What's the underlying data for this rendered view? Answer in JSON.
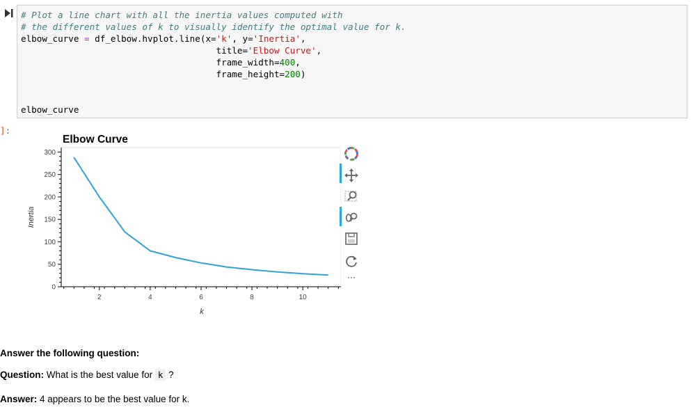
{
  "code_cell": {
    "lines": {
      "l1": "# Plot a line chart with all the inertia values computed with",
      "l2": "# the different values of k to visually identify the optimal value for k.",
      "l3a": "elbow_curve ",
      "l3b": "=",
      "l3c": " df_elbow.hvplot.line(x=",
      "l3d": "'k'",
      "l3e": ", y=",
      "l3f": "'Inertia'",
      "l3g": ",",
      "l4a": "                                     title=",
      "l4b": "'Elbow Curve'",
      "l4c": ",",
      "l5a": "                                     frame_width=",
      "l5b": "400",
      "l5c": ",",
      "l6a": "                                     frame_height=",
      "l6b": "200",
      "l6c": ")",
      "l7": "",
      "l8": "",
      "l9": "elbow_curve"
    }
  },
  "output_prompt": "]:",
  "chart_data": {
    "type": "line",
    "title": "Elbow Curve",
    "xlabel": "k",
    "ylabel": "Inertia",
    "xlim": [
      0.5,
      11.5
    ],
    "ylim": [
      0,
      310
    ],
    "x_ticks": [
      2,
      4,
      6,
      8,
      10
    ],
    "y_ticks": [
      0,
      50,
      100,
      150,
      200,
      250,
      300
    ],
    "x": [
      1,
      2,
      3,
      4,
      5,
      6,
      7,
      8,
      9,
      10,
      11
    ],
    "values": [
      288,
      200,
      122,
      80,
      65,
      53,
      44,
      38,
      33,
      29,
      26
    ],
    "line_color": "#30a2da",
    "grid": false
  },
  "toolbar": {
    "tools": [
      "bokeh-logo-icon",
      "pan-icon",
      "box-zoom-icon",
      "wheel-zoom-icon",
      "save-icon",
      "reset-icon",
      "more-icon"
    ],
    "accent": "#26aae1"
  },
  "markdown": {
    "heading": "Answer the following question:",
    "question_label": "Question:",
    "question_text": " What is the best value for ",
    "question_code": "k",
    "question_end": " ?",
    "answer_label": "Answer:",
    "answer_text": " 4 appears to be the best value for k."
  }
}
